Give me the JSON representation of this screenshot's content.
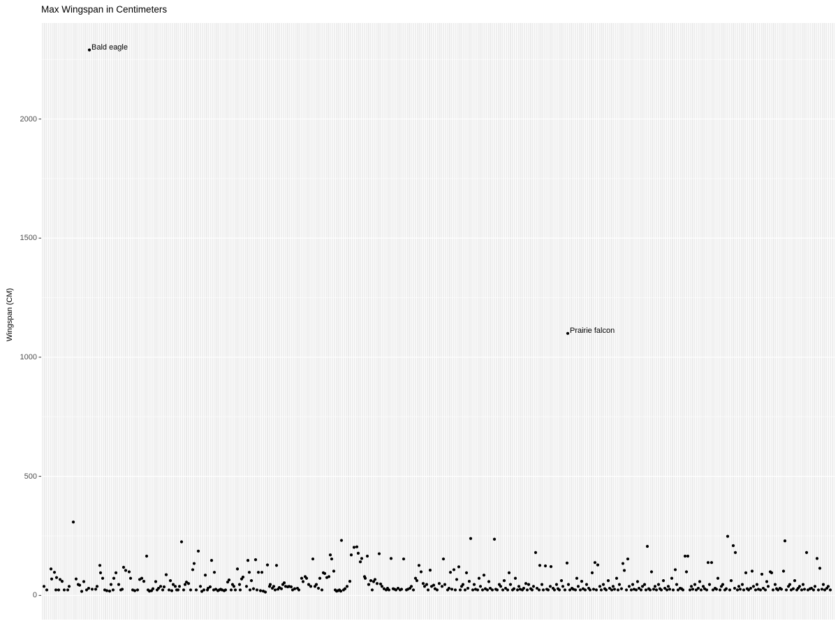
{
  "colors": {
    "panel_bg": "#EBEBEB",
    "grid": "#FFFFFF",
    "point": "#000000",
    "tick_label": "#4D4D4D",
    "tick_mark": "#333333",
    "text": "#000000"
  },
  "chart_data": {
    "type": "scatter",
    "title": "Max Wingspan in Centimeters",
    "xlabel": "",
    "ylabel": "Wingspan (CM)",
    "x_axis_note": "categorical species axis, one point per species, tick labels not shown",
    "y_ticks": [
      0,
      500,
      1000,
      1500,
      2000
    ],
    "y_minor_ticks": [
      250,
      750,
      1250,
      1750,
      2250
    ],
    "ylim": [
      -100,
      2400
    ],
    "grid": "on",
    "legend": "none",
    "annotations": [
      {
        "label": "Bald eagle",
        "x": 128,
        "value": 2290
      },
      {
        "label": "Prairie falcon",
        "x": 813,
        "value": 1100
      }
    ],
    "points_units": "[x position in panel pixels (categorical axis), wingspan value in cm]",
    "points": [
      [
        63,
        38
      ],
      [
        67,
        23
      ],
      [
        73,
        111
      ],
      [
        74,
        69
      ],
      [
        78,
        97
      ],
      [
        80,
        23
      ],
      [
        81,
        75
      ],
      [
        84,
        23
      ],
      [
        86,
        67
      ],
      [
        89,
        59
      ],
      [
        92,
        23
      ],
      [
        97,
        23
      ],
      [
        99,
        38
      ],
      [
        105,
        308
      ],
      [
        109,
        69
      ],
      [
        112,
        46
      ],
      [
        114,
        43
      ],
      [
        117,
        17
      ],
      [
        120,
        58
      ],
      [
        124,
        23
      ],
      [
        127,
        30
      ],
      [
        132,
        26
      ],
      [
        137,
        26
      ],
      [
        139,
        38
      ],
      [
        143,
        126
      ],
      [
        144,
        95
      ],
      [
        147,
        72
      ],
      [
        150,
        23
      ],
      [
        153,
        20
      ],
      [
        157,
        18
      ],
      [
        159,
        46
      ],
      [
        162,
        23
      ],
      [
        163,
        72
      ],
      [
        166,
        95
      ],
      [
        170,
        46
      ],
      [
        173,
        23
      ],
      [
        175,
        26
      ],
      [
        177,
        118
      ],
      [
        180,
        105
      ],
      [
        185,
        99
      ],
      [
        187,
        72
      ],
      [
        190,
        23
      ],
      [
        193,
        20
      ],
      [
        197,
        23
      ],
      [
        200,
        67
      ],
      [
        203,
        72
      ],
      [
        206,
        59
      ],
      [
        210,
        165
      ],
      [
        212,
        23
      ],
      [
        214,
        18
      ],
      [
        217,
        20
      ],
      [
        219,
        28
      ],
      [
        223,
        58
      ],
      [
        225,
        23
      ],
      [
        227,
        30
      ],
      [
        230,
        38
      ],
      [
        233,
        23
      ],
      [
        235,
        36
      ],
      [
        238,
        87
      ],
      [
        242,
        23
      ],
      [
        244,
        62
      ],
      [
        246,
        20
      ],
      [
        248,
        46
      ],
      [
        251,
        38
      ],
      [
        253,
        23
      ],
      [
        255,
        23
      ],
      [
        257,
        38
      ],
      [
        260,
        225
      ],
      [
        263,
        23
      ],
      [
        265,
        46
      ],
      [
        267,
        56
      ],
      [
        270,
        50
      ],
      [
        273,
        23
      ],
      [
        276,
        108
      ],
      [
        278,
        134
      ],
      [
        281,
        23
      ],
      [
        284,
        186
      ],
      [
        287,
        38
      ],
      [
        289,
        17
      ],
      [
        292,
        23
      ],
      [
        294,
        85
      ],
      [
        297,
        23
      ],
      [
        298,
        30
      ],
      [
        301,
        36
      ],
      [
        303,
        147
      ],
      [
        306,
        23
      ],
      [
        307,
        97
      ],
      [
        309,
        26
      ],
      [
        312,
        20
      ],
      [
        314,
        23
      ],
      [
        316,
        26
      ],
      [
        318,
        23
      ],
      [
        321,
        20
      ],
      [
        323,
        23
      ],
      [
        326,
        56
      ],
      [
        328,
        65
      ],
      [
        331,
        23
      ],
      [
        333,
        46
      ],
      [
        335,
        38
      ],
      [
        337,
        23
      ],
      [
        340,
        111
      ],
      [
        343,
        46
      ],
      [
        344,
        23
      ],
      [
        346,
        69
      ],
      [
        348,
        77
      ],
      [
        353,
        38
      ],
      [
        355,
        147
      ],
      [
        357,
        97
      ],
      [
        358,
        23
      ],
      [
        360,
        62
      ],
      [
        363,
        28
      ],
      [
        366,
        150
      ],
      [
        368,
        23
      ],
      [
        370,
        97
      ],
      [
        373,
        20
      ],
      [
        375,
        97
      ],
      [
        377,
        18
      ],
      [
        380,
        14
      ],
      [
        383,
        128
      ],
      [
        386,
        38
      ],
      [
        387,
        46
      ],
      [
        390,
        30
      ],
      [
        392,
        38
      ],
      [
        394,
        23
      ],
      [
        396,
        126
      ],
      [
        398,
        26
      ],
      [
        400,
        33
      ],
      [
        403,
        28
      ],
      [
        405,
        46
      ],
      [
        407,
        53
      ],
      [
        409,
        38
      ],
      [
        412,
        36
      ],
      [
        414,
        38
      ],
      [
        417,
        36
      ],
      [
        419,
        23
      ],
      [
        422,
        28
      ],
      [
        426,
        30
      ],
      [
        428,
        23
      ],
      [
        432,
        72
      ],
      [
        434,
        58
      ],
      [
        437,
        79
      ],
      [
        439,
        72
      ],
      [
        442,
        46
      ],
      [
        445,
        38
      ],
      [
        448,
        153
      ],
      [
        451,
        38
      ],
      [
        453,
        46
      ],
      [
        456,
        30
      ],
      [
        458,
        72
      ],
      [
        461,
        23
      ],
      [
        463,
        95
      ],
      [
        465,
        92
      ],
      [
        468,
        75
      ],
      [
        471,
        79
      ],
      [
        473,
        170
      ],
      [
        475,
        153
      ],
      [
        478,
        102
      ],
      [
        480,
        23
      ],
      [
        482,
        18
      ],
      [
        484,
        20
      ],
      [
        486,
        23
      ],
      [
        488,
        18
      ],
      [
        489,
        231
      ],
      [
        492,
        23
      ],
      [
        494,
        28
      ],
      [
        497,
        38
      ],
      [
        501,
        59
      ],
      [
        503,
        170
      ],
      [
        507,
        202
      ],
      [
        511,
        204
      ],
      [
        513,
        177
      ],
      [
        516,
        141
      ],
      [
        518,
        155
      ],
      [
        522,
        79
      ],
      [
        523,
        72
      ],
      [
        526,
        165
      ],
      [
        528,
        46
      ],
      [
        531,
        62
      ],
      [
        533,
        23
      ],
      [
        535,
        58
      ],
      [
        537,
        67
      ],
      [
        540,
        50
      ],
      [
        543,
        175
      ],
      [
        545,
        48
      ],
      [
        547,
        38
      ],
      [
        550,
        28
      ],
      [
        553,
        23
      ],
      [
        555,
        30
      ],
      [
        557,
        23
      ],
      [
        560,
        155
      ],
      [
        563,
        28
      ],
      [
        565,
        26
      ],
      [
        567,
        23
      ],
      [
        570,
        30
      ],
      [
        573,
        23
      ],
      [
        575,
        26
      ],
      [
        578,
        153
      ],
      [
        582,
        23
      ],
      [
        584,
        26
      ],
      [
        587,
        30
      ],
      [
        589,
        38
      ],
      [
        592,
        23
      ],
      [
        595,
        72
      ],
      [
        597,
        62
      ],
      [
        600,
        126
      ],
      [
        603,
        99
      ],
      [
        606,
        50
      ],
      [
        608,
        38
      ],
      [
        611,
        46
      ],
      [
        613,
        23
      ],
      [
        616,
        106
      ],
      [
        618,
        38
      ],
      [
        621,
        43
      ],
      [
        623,
        28
      ],
      [
        626,
        23
      ],
      [
        629,
        50
      ],
      [
        633,
        38
      ],
      [
        635,
        153
      ],
      [
        637,
        46
      ],
      [
        641,
        23
      ],
      [
        643,
        30
      ],
      [
        645,
        97
      ],
      [
        647,
        26
      ],
      [
        650,
        108
      ],
      [
        652,
        23
      ],
      [
        654,
        67
      ],
      [
        657,
        120
      ],
      [
        659,
        23
      ],
      [
        661,
        38
      ],
      [
        663,
        46
      ],
      [
        666,
        23
      ],
      [
        668,
        95
      ],
      [
        670,
        30
      ],
      [
        672,
        59
      ],
      [
        674,
        239
      ],
      [
        677,
        23
      ],
      [
        679,
        46
      ],
      [
        681,
        26
      ],
      [
        684,
        23
      ],
      [
        686,
        72
      ],
      [
        688,
        38
      ],
      [
        691,
        23
      ],
      [
        693,
        85
      ],
      [
        695,
        28
      ],
      [
        698,
        23
      ],
      [
        700,
        58
      ],
      [
        702,
        30
      ],
      [
        705,
        23
      ],
      [
        708,
        236
      ],
      [
        710,
        26
      ],
      [
        712,
        23
      ],
      [
        715,
        46
      ],
      [
        717,
        38
      ],
      [
        720,
        23
      ],
      [
        722,
        62
      ],
      [
        724,
        30
      ],
      [
        727,
        23
      ],
      [
        729,
        95
      ],
      [
        731,
        46
      ],
      [
        734,
        23
      ],
      [
        736,
        28
      ],
      [
        738,
        72
      ],
      [
        741,
        23
      ],
      [
        743,
        38
      ],
      [
        745,
        26
      ],
      [
        748,
        23
      ],
      [
        750,
        30
      ],
      [
        753,
        50
      ],
      [
        755,
        23
      ],
      [
        757,
        46
      ],
      [
        760,
        28
      ],
      [
        762,
        23
      ],
      [
        764,
        38
      ],
      [
        767,
        180
      ],
      [
        769,
        30
      ],
      [
        772,
        23
      ],
      [
        773,
        126
      ],
      [
        776,
        46
      ],
      [
        778,
        23
      ],
      [
        781,
        124
      ],
      [
        783,
        26
      ],
      [
        785,
        23
      ],
      [
        788,
        38
      ],
      [
        789,
        121
      ],
      [
        792,
        30
      ],
      [
        794,
        23
      ],
      [
        797,
        46
      ],
      [
        799,
        28
      ],
      [
        801,
        23
      ],
      [
        804,
        62
      ],
      [
        806,
        38
      ],
      [
        809,
        23
      ],
      [
        812,
        136
      ],
      [
        814,
        46
      ],
      [
        816,
        23
      ],
      [
        819,
        30
      ],
      [
        821,
        26
      ],
      [
        824,
        23
      ],
      [
        826,
        72
      ],
      [
        828,
        38
      ],
      [
        831,
        23
      ],
      [
        833,
        59
      ],
      [
        835,
        28
      ],
      [
        838,
        23
      ],
      [
        840,
        46
      ],
      [
        843,
        30
      ],
      [
        845,
        23
      ],
      [
        848,
        95
      ],
      [
        850,
        26
      ],
      [
        852,
        138
      ],
      [
        854,
        23
      ],
      [
        856,
        128
      ],
      [
        859,
        38
      ],
      [
        861,
        23
      ],
      [
        864,
        46
      ],
      [
        866,
        28
      ],
      [
        868,
        23
      ],
      [
        871,
        62
      ],
      [
        873,
        30
      ],
      [
        876,
        23
      ],
      [
        878,
        38
      ],
      [
        880,
        26
      ],
      [
        883,
        72
      ],
      [
        885,
        23
      ],
      [
        887,
        46
      ],
      [
        890,
        28
      ],
      [
        892,
        134
      ],
      [
        894,
        105
      ],
      [
        897,
        23
      ],
      [
        899,
        153
      ],
      [
        901,
        38
      ],
      [
        904,
        23
      ],
      [
        906,
        46
      ],
      [
        908,
        26
      ],
      [
        911,
        23
      ],
      [
        913,
        58
      ],
      [
        915,
        30
      ],
      [
        918,
        23
      ],
      [
        920,
        38
      ],
      [
        923,
        46
      ],
      [
        925,
        23
      ],
      [
        927,
        206
      ],
      [
        929,
        28
      ],
      [
        931,
        23
      ],
      [
        933,
        99
      ],
      [
        936,
        26
      ],
      [
        938,
        38
      ],
      [
        940,
        23
      ],
      [
        943,
        46
      ],
      [
        945,
        28
      ],
      [
        947,
        23
      ],
      [
        950,
        62
      ],
      [
        952,
        30
      ],
      [
        955,
        23
      ],
      [
        957,
        38
      ],
      [
        959,
        26
      ],
      [
        962,
        72
      ],
      [
        964,
        23
      ],
      [
        967,
        108
      ],
      [
        969,
        46
      ],
      [
        971,
        23
      ],
      [
        974,
        30
      ],
      [
        976,
        28
      ],
      [
        978,
        23
      ],
      [
        981,
        165
      ],
      [
        983,
        99
      ],
      [
        985,
        165
      ],
      [
        988,
        23
      ],
      [
        990,
        38
      ],
      [
        992,
        26
      ],
      [
        995,
        46
      ],
      [
        997,
        23
      ],
      [
        1000,
        30
      ],
      [
        1002,
        58
      ],
      [
        1004,
        23
      ],
      [
        1007,
        38
      ],
      [
        1009,
        28
      ],
      [
        1012,
        23
      ],
      [
        1014,
        138
      ],
      [
        1016,
        46
      ],
      [
        1019,
        138
      ],
      [
        1021,
        23
      ],
      [
        1024,
        30
      ],
      [
        1026,
        26
      ],
      [
        1028,
        72
      ],
      [
        1031,
        23
      ],
      [
        1033,
        38
      ],
      [
        1035,
        46
      ],
      [
        1038,
        23
      ],
      [
        1040,
        28
      ],
      [
        1042,
        248
      ],
      [
        1045,
        23
      ],
      [
        1047,
        62
      ],
      [
        1050,
        209
      ],
      [
        1052,
        30
      ],
      [
        1053,
        180
      ],
      [
        1056,
        23
      ],
      [
        1058,
        38
      ],
      [
        1060,
        26
      ],
      [
        1063,
        46
      ],
      [
        1065,
        23
      ],
      [
        1068,
        95
      ],
      [
        1070,
        28
      ],
      [
        1072,
        23
      ],
      [
        1075,
        30
      ],
      [
        1077,
        102
      ],
      [
        1079,
        38
      ],
      [
        1082,
        23
      ],
      [
        1084,
        46
      ],
      [
        1086,
        26
      ],
      [
        1089,
        23
      ],
      [
        1091,
        89
      ],
      [
        1093,
        30
      ],
      [
        1096,
        23
      ],
      [
        1098,
        58
      ],
      [
        1100,
        38
      ],
      [
        1103,
        99
      ],
      [
        1105,
        95
      ],
      [
        1107,
        23
      ],
      [
        1110,
        46
      ],
      [
        1112,
        28
      ],
      [
        1114,
        23
      ],
      [
        1117,
        30
      ],
      [
        1119,
        26
      ],
      [
        1122,
        102
      ],
      [
        1124,
        229
      ],
      [
        1126,
        23
      ],
      [
        1129,
        38
      ],
      [
        1131,
        46
      ],
      [
        1133,
        23
      ],
      [
        1136,
        28
      ],
      [
        1138,
        62
      ],
      [
        1141,
        23
      ],
      [
        1143,
        30
      ],
      [
        1145,
        38
      ],
      [
        1148,
        23
      ],
      [
        1150,
        46
      ],
      [
        1152,
        26
      ],
      [
        1155,
        180
      ],
      [
        1157,
        23
      ],
      [
        1160,
        28
      ],
      [
        1162,
        30
      ],
      [
        1165,
        23
      ],
      [
        1167,
        38
      ],
      [
        1170,
        155
      ],
      [
        1172,
        23
      ],
      [
        1174,
        114
      ],
      [
        1177,
        26
      ],
      [
        1179,
        46
      ],
      [
        1181,
        23
      ],
      [
        1184,
        30
      ],
      [
        1186,
        38
      ],
      [
        1189,
        23
      ]
    ]
  }
}
